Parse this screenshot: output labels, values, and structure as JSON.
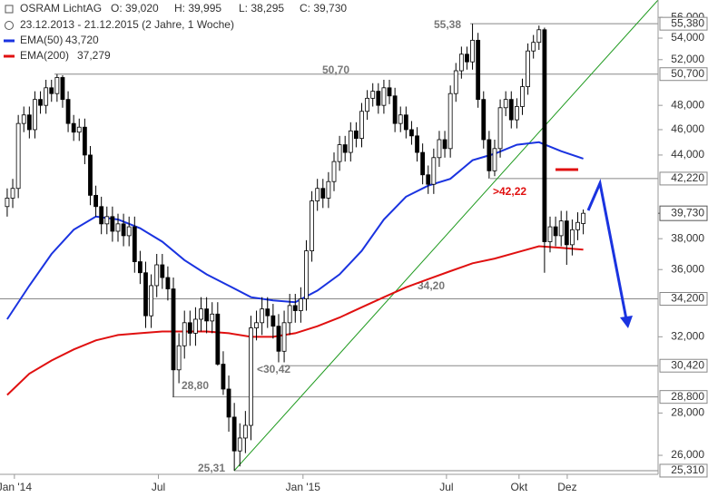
{
  "chart_data": {
    "type": "candlestick",
    "header": {
      "name": "OSRAM LichtAG",
      "open": "O: 39,020",
      "high": "H: 39,995",
      "low": "L: 38,295",
      "close": "C: 39,730",
      "range": "23.12.2013 - 21.12.2015 (2 Jahre, 1 Woche)"
    },
    "open": [
      40200,
      40800,
      41500,
      46500,
      47200,
      46000,
      48500,
      48000,
      49500,
      49000,
      50400,
      48500,
      46500,
      45800,
      46200,
      44000,
      41000,
      40200,
      39000,
      39500,
      38500,
      39000,
      38200,
      38800,
      36500,
      35800,
      33200,
      35000,
      36300,
      35500,
      34800,
      30200,
      31500,
      32800,
      32200,
      33000,
      33600,
      32900,
      33300,
      30500,
      29200,
      27800,
      26200,
      26800,
      27400,
      32500,
      32800,
      33600,
      33200,
      32600,
      31200,
      32800,
      33800,
      33500,
      34200,
      37200,
      40600,
      41500,
      40800,
      42000,
      43500,
      44800,
      44200,
      45900,
      45300,
      47500,
      48600,
      49200,
      48000,
      49500,
      48800,
      46500,
      47200,
      46000,
      45500,
      44200,
      42500,
      41800,
      43800,
      45200,
      44500,
      49000,
      51000,
      52500,
      51800,
      53800,
      48500,
      45200,
      42800,
      44500,
      47800,
      48500,
      46800,
      47900,
      49600,
      52800,
      53600,
      54800,
      37800,
      38800,
      38200,
      39200,
      37600,
      38600,
      39020
    ],
    "high": [
      41500,
      42200,
      47200,
      47900,
      47900,
      49200,
      49200,
      50200,
      50200,
      50700,
      50600,
      49200,
      47200,
      46900,
      46900,
      44700,
      41700,
      40900,
      40200,
      40200,
      39700,
      39700,
      39500,
      39500,
      37200,
      36500,
      35700,
      37000,
      37000,
      36200,
      35500,
      32200,
      33500,
      33500,
      33700,
      34300,
      34300,
      34000,
      34000,
      31200,
      29900,
      28500,
      27500,
      28100,
      33200,
      33500,
      34300,
      34300,
      33900,
      33300,
      33500,
      34500,
      34500,
      34900,
      37900,
      41300,
      42200,
      42200,
      42700,
      44200,
      45500,
      45500,
      46600,
      46600,
      48200,
      49300,
      49900,
      49900,
      50200,
      50200,
      49500,
      47900,
      47900,
      46700,
      46200,
      44900,
      43200,
      44500,
      45900,
      45900,
      49700,
      51700,
      53200,
      53200,
      55380,
      54500,
      49200,
      45900,
      45200,
      48500,
      49200,
      49200,
      48600,
      50300,
      53500,
      54300,
      55200,
      55000,
      39500,
      39500,
      39900,
      39900,
      39300,
      39800,
      39995
    ],
    "low": [
      39500,
      40100,
      40800,
      45800,
      45300,
      45300,
      47300,
      47300,
      48300,
      48300,
      47800,
      45800,
      45100,
      45100,
      43300,
      40300,
      39500,
      38300,
      38300,
      37800,
      37800,
      37500,
      37500,
      35800,
      35100,
      32500,
      32500,
      34300,
      34800,
      34100,
      28800,
      29500,
      30800,
      31500,
      31500,
      32300,
      32200,
      32200,
      30420,
      28900,
      27100,
      25310,
      25500,
      26100,
      26700,
      31800,
      32100,
      32500,
      31900,
      30600,
      30600,
      32100,
      32800,
      32800,
      33500,
      36500,
      39900,
      40100,
      40100,
      41300,
      42800,
      43500,
      43500,
      44600,
      44600,
      46800,
      47900,
      47300,
      47300,
      48100,
      45800,
      45800,
      45300,
      44800,
      43500,
      41800,
      41100,
      41100,
      43100,
      43800,
      43800,
      48300,
      50300,
      51100,
      51100,
      47800,
      44500,
      42220,
      42400,
      43800,
      47100,
      46100,
      46100,
      47200,
      48900,
      52100,
      52900,
      35800,
      37100,
      37500,
      37500,
      36300,
      36900,
      37900,
      38295
    ],
    "close": [
      40800,
      41500,
      46500,
      47200,
      46000,
      48500,
      48000,
      49500,
      49000,
      50400,
      48500,
      46500,
      45800,
      46200,
      44000,
      41000,
      40200,
      39000,
      39500,
      38500,
      39000,
      38200,
      38800,
      36500,
      35800,
      33200,
      35000,
      36300,
      35500,
      34800,
      30200,
      31500,
      32800,
      32200,
      33000,
      33600,
      32900,
      33300,
      30500,
      29200,
      27800,
      26200,
      26800,
      27400,
      32500,
      32800,
      33600,
      33200,
      32600,
      31200,
      32800,
      33800,
      33500,
      34200,
      37200,
      40600,
      41500,
      40800,
      42000,
      43500,
      44800,
      44200,
      45900,
      45300,
      47500,
      48600,
      49200,
      48000,
      49500,
      48800,
      46500,
      47200,
      46000,
      45500,
      44200,
      42500,
      41800,
      43800,
      45200,
      44500,
      49000,
      51000,
      52500,
      51800,
      53800,
      48500,
      45200,
      42800,
      44500,
      47800,
      48500,
      46800,
      47900,
      49600,
      52800,
      53600,
      54800,
      37800,
      38800,
      38200,
      39200,
      37600,
      38600,
      39100,
      39730
    ],
    "series": [
      {
        "name": "EMA(50)",
        "value_label": "43,720",
        "color": "#1a33e0",
        "x": [
          0,
          4,
          8,
          12,
          16,
          20,
          24,
          28,
          32,
          36,
          40,
          44,
          48,
          52,
          56,
          60,
          64,
          68,
          72,
          76,
          80,
          84,
          88,
          92,
          96,
          100,
          104
        ],
        "values": [
          33000,
          35000,
          37000,
          38600,
          39500,
          39300,
          38700,
          37800,
          36600,
          35700,
          35000,
          34300,
          34100,
          34000,
          34700,
          35700,
          37200,
          39300,
          40900,
          41700,
          42200,
          43600,
          44100,
          44800,
          45000,
          44300,
          43720
        ]
      },
      {
        "name": "EMA(200)",
        "value_label": "37,279",
        "color": "#e01010",
        "x": [
          0,
          4,
          8,
          12,
          16,
          20,
          24,
          28,
          32,
          36,
          40,
          44,
          48,
          52,
          56,
          60,
          64,
          68,
          72,
          76,
          80,
          84,
          88,
          92,
          96,
          100,
          104
        ],
        "values": [
          28900,
          30000,
          30700,
          31300,
          31800,
          32100,
          32200,
          32300,
          32300,
          32300,
          32200,
          32000,
          32000,
          32200,
          32600,
          33100,
          33700,
          34300,
          34900,
          35400,
          35900,
          36400,
          36700,
          37100,
          37500,
          37400,
          37279
        ]
      }
    ],
    "levels": [
      {
        "value": 55380,
        "label": "55,380",
        "note": "55,38"
      },
      {
        "value": 50700,
        "label": "50,700",
        "note": "50,70"
      },
      {
        "value": 42220,
        "label": "42,220",
        "note": ">42,22"
      },
      {
        "value": 34200,
        "label": "34,200",
        "note": "34,20"
      },
      {
        "value": 30420,
        "label": "30,420",
        "note": "<30,42"
      },
      {
        "value": 28800,
        "label": "28,800",
        "note": "28,80"
      },
      {
        "value": 25310,
        "label": "25,310",
        "note": "25,31"
      }
    ],
    "last": {
      "value": 39730,
      "label": "39,730"
    },
    "log_scale": true,
    "ylim": [
      24870,
      57730
    ],
    "yticks": [
      {
        "value": 26000,
        "label": "26,000"
      },
      {
        "value": 28000,
        "label": "28,000"
      },
      {
        "value": 32000,
        "label": "32,000"
      },
      {
        "value": 36000,
        "label": "36,000"
      },
      {
        "value": 38000,
        "label": "38,000"
      },
      {
        "value": 44000,
        "label": "44,000"
      },
      {
        "value": 46000,
        "label": "46,000"
      },
      {
        "value": 48000,
        "label": "48,000"
      },
      {
        "value": 52000,
        "label": "52,000"
      },
      {
        "value": 54000,
        "label": "54,000"
      },
      {
        "value": 56000,
        "label": "56,000"
      }
    ],
    "xlim": [
      -1.3,
      117.5
    ],
    "xticks": [
      {
        "value": 1.3,
        "label": "Jan '14"
      },
      {
        "value": 27.3,
        "label": "Jul"
      },
      {
        "value": 53.4,
        "label": "Jan '15"
      },
      {
        "value": 79.3,
        "label": "Jul"
      },
      {
        "value": 92.4,
        "label": "Okt"
      },
      {
        "value": 101.1,
        "label": "Dez"
      }
    ]
  }
}
